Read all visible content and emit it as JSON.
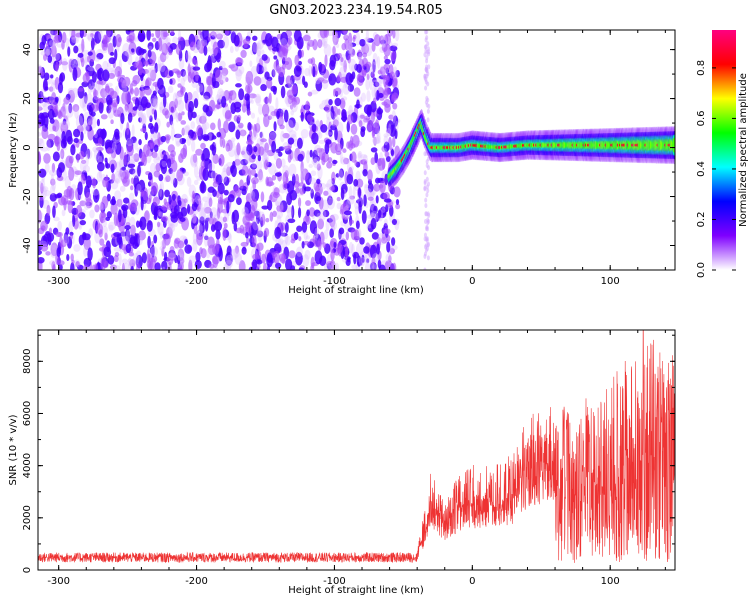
{
  "title": "GN03.2023.234.19.54.R05",
  "chart_data": [
    {
      "type": "heatmap",
      "xlabel": "Height of straight line (km)",
      "ylabel": "Frequency (Hz)",
      "xlim": [
        -315,
        147
      ],
      "ylim": [
        -50,
        48
      ],
      "xticks": [
        -300,
        -200,
        -100,
        0,
        100
      ],
      "yticks": [
        -40,
        -20,
        0,
        20,
        40
      ],
      "colorbar": {
        "label": "Normalized spectral amplitude",
        "range": [
          0,
          0.95
        ],
        "ticks": [
          0.0,
          0.2,
          0.4,
          0.6,
          0.8
        ],
        "colormap": [
          "#ffffff",
          "#7f00ff",
          "#0000ff",
          "#00ffff",
          "#00ff00",
          "#ffff00",
          "#ff0000",
          "#ff007f"
        ]
      },
      "noise_region_x": [
        -315,
        -58
      ],
      "noise_stripe_x": -33,
      "ridge": {
        "x": [
          -60,
          -55,
          -50,
          -45,
          -40,
          -37,
          -34,
          -30,
          -25,
          -20,
          -10,
          0,
          20,
          40,
          60,
          80,
          100,
          120,
          147
        ],
        "y": [
          -12,
          -9,
          -5,
          0,
          6,
          10,
          5,
          0,
          0,
          0,
          0,
          1,
          0,
          1,
          1,
          1,
          1,
          1,
          1
        ]
      }
    },
    {
      "type": "line",
      "xlabel": "Height of straight line (km)",
      "ylabel": "SNR (10 * v/v)",
      "xlim": [
        -315,
        147
      ],
      "ylim": [
        0,
        9200
      ],
      "xticks": [
        -300,
        -200,
        -100,
        0,
        100
      ],
      "yticks": [
        0,
        2000,
        4000,
        6000,
        8000
      ],
      "color": "#ee3333",
      "baseline": {
        "x_end": -40,
        "level": 480
      },
      "envelope": {
        "x": [
          -40,
          -35,
          -30,
          -20,
          -10,
          0,
          10,
          20,
          30,
          40,
          50,
          60,
          70,
          80,
          90,
          100,
          110,
          120,
          130,
          140,
          147
        ],
        "y": [
          600,
          1600,
          2800,
          2000,
          2600,
          2900,
          2900,
          3000,
          3200,
          4200,
          4600,
          4400,
          4600,
          4800,
          4500,
          5200,
          5800,
          6200,
          6400,
          5700,
          6200
        ]
      },
      "peak": {
        "x": 124,
        "y": 9200
      }
    }
  ]
}
